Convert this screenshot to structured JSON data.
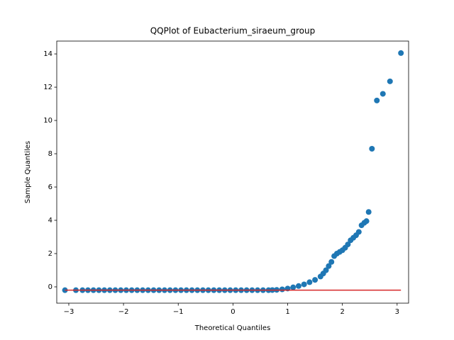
{
  "chart_data": {
    "type": "scatter",
    "title": "QQPlot of Eubacterium_siraeum_group",
    "xlabel": "Theoretical Quantiles",
    "ylabel": "Sample Quantiles",
    "x": [
      -3.07,
      -2.87,
      -2.75,
      -2.65,
      -2.55,
      -2.45,
      -2.35,
      -2.25,
      -2.15,
      -2.05,
      -1.95,
      -1.85,
      -1.75,
      -1.65,
      -1.55,
      -1.45,
      -1.35,
      -1.25,
      -1.15,
      -1.05,
      -0.95,
      -0.85,
      -0.75,
      -0.65,
      -0.55,
      -0.45,
      -0.35,
      -0.25,
      -0.15,
      -0.05,
      0.05,
      0.15,
      0.25,
      0.35,
      0.45,
      0.55,
      0.65,
      0.72,
      0.8,
      0.9,
      1.0,
      1.1,
      1.2,
      1.3,
      1.4,
      1.5,
      1.6,
      1.65,
      1.7,
      1.75,
      1.8,
      1.85,
      1.9,
      1.95,
      2.0,
      2.05,
      2.1,
      2.15,
      2.2,
      2.25,
      2.3,
      2.35,
      2.4,
      2.44,
      2.48,
      2.54,
      2.63,
      2.74,
      2.87,
      3.07
    ],
    "values": [
      -0.2,
      -0.2,
      -0.2,
      -0.2,
      -0.2,
      -0.2,
      -0.2,
      -0.2,
      -0.2,
      -0.2,
      -0.2,
      -0.2,
      -0.2,
      -0.2,
      -0.2,
      -0.2,
      -0.2,
      -0.2,
      -0.2,
      -0.2,
      -0.2,
      -0.2,
      -0.2,
      -0.2,
      -0.2,
      -0.2,
      -0.2,
      -0.2,
      -0.2,
      -0.2,
      -0.2,
      -0.2,
      -0.2,
      -0.2,
      -0.2,
      -0.2,
      -0.2,
      -0.19,
      -0.18,
      -0.15,
      -0.1,
      -0.03,
      0.05,
      0.15,
      0.28,
      0.42,
      0.62,
      0.8,
      1.0,
      1.25,
      1.5,
      1.85,
      2.0,
      2.1,
      2.2,
      2.35,
      2.55,
      2.8,
      2.95,
      3.1,
      3.3,
      3.7,
      3.85,
      3.95,
      4.5,
      8.3,
      11.2,
      11.6,
      12.35,
      14.05
    ],
    "color": "#1f77b4",
    "reference_line": {
      "x": [
        -3.07,
        3.07
      ],
      "values": [
        -0.2,
        -0.2
      ],
      "color": "#d62728"
    },
    "xlim": [
      -3.22,
      3.21
    ],
    "ylim": [
      -0.98,
      14.77
    ],
    "xticks": [
      {
        "value": -3,
        "label": "−3"
      },
      {
        "value": -2,
        "label": "−2"
      },
      {
        "value": -1,
        "label": "−1"
      },
      0,
      1,
      2,
      3
    ],
    "yticks": [
      0,
      2,
      4,
      6,
      8,
      10,
      12,
      14
    ]
  }
}
